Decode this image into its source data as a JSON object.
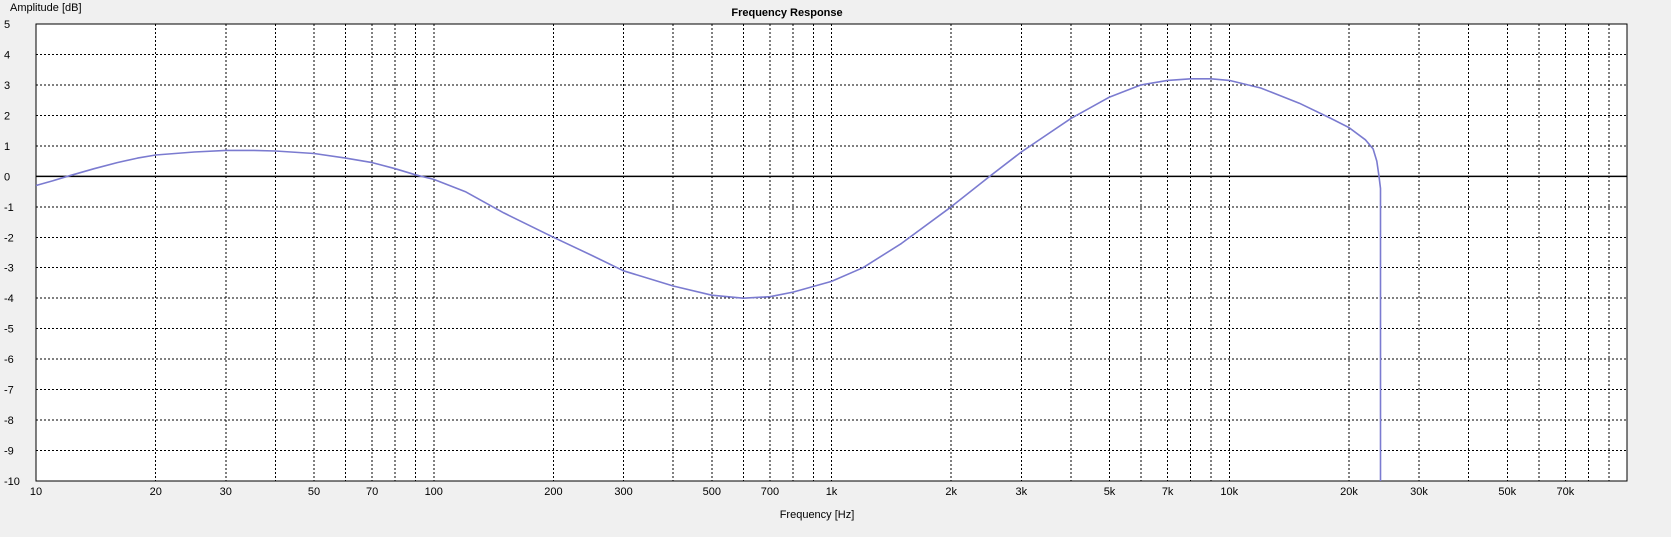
{
  "chart_data": {
    "type": "line",
    "title": "Frequency Response",
    "xlabel": "Frequency [Hz]",
    "ylabel": "Amplitude [dB]",
    "x_scale": "log",
    "xlim": [
      10,
      100000
    ],
    "ylim": [
      -10,
      5
    ],
    "grid": true,
    "legend": "none",
    "x_tick_values": [
      10,
      20,
      30,
      50,
      70,
      100,
      200,
      300,
      500,
      700,
      1000,
      2000,
      3000,
      5000,
      7000,
      10000,
      20000,
      30000,
      50000,
      70000
    ],
    "x_tick_labels": [
      "10",
      "20",
      "30",
      "50",
      "70",
      "100",
      "200",
      "300",
      "500",
      "700",
      "1k",
      "2k",
      "3k",
      "5k",
      "7k",
      "10k",
      "20k",
      "30k",
      "50k",
      "70k"
    ],
    "y_tick_values": [
      5,
      4,
      3,
      2,
      1,
      0,
      -1,
      -2,
      -3,
      -4,
      -5,
      -6,
      -7,
      -8,
      -9,
      -10
    ],
    "y_tick_labels": [
      "5",
      "4",
      "3",
      "2",
      "1",
      "0",
      "-1",
      "-2",
      "-3",
      "-4",
      "-5",
      "-6",
      "-7",
      "-8",
      "-9",
      "-10"
    ],
    "reference_line": {
      "y": 0,
      "color": "#000000"
    },
    "series": [
      {
        "color": "#7b7bd0",
        "x": [
          10,
          11,
          12,
          14,
          16,
          18,
          20,
          25,
          30,
          35,
          40,
          50,
          60,
          70,
          80,
          90,
          100,
          120,
          150,
          200,
          250,
          300,
          400,
          500,
          600,
          700,
          800,
          1000,
          1200,
          1500,
          2000,
          2500,
          3000,
          4000,
          5000,
          6000,
          7000,
          8000,
          9000,
          10000,
          12000,
          15000,
          18000,
          20000,
          22000,
          23000,
          23500,
          23800,
          24000,
          24000
        ],
        "y": [
          -0.3,
          -0.15,
          0.0,
          0.25,
          0.45,
          0.6,
          0.7,
          0.8,
          0.85,
          0.85,
          0.83,
          0.75,
          0.6,
          0.45,
          0.25,
          0.05,
          -0.1,
          -0.5,
          -1.2,
          -2.0,
          -2.6,
          -3.1,
          -3.6,
          -3.9,
          -4.0,
          -3.95,
          -3.8,
          -3.45,
          -3.0,
          -2.2,
          -1.0,
          0.0,
          0.8,
          1.9,
          2.6,
          3.0,
          3.15,
          3.2,
          3.2,
          3.15,
          2.9,
          2.4,
          1.9,
          1.6,
          1.2,
          0.9,
          0.5,
          0.0,
          -0.4,
          -10
        ]
      }
    ]
  }
}
